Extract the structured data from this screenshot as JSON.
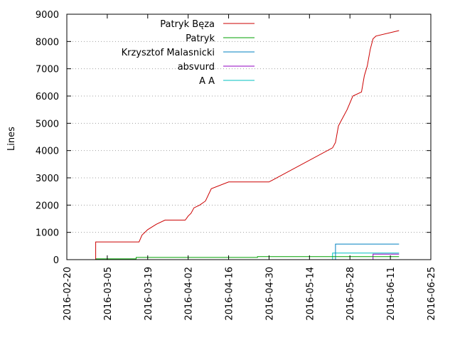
{
  "chart_data": {
    "type": "line",
    "title": "",
    "xlabel": "",
    "ylabel": "Lines",
    "x_axis": {
      "type": "date",
      "range": [
        "2016-02-20",
        "2016-06-25"
      ],
      "ticks": [
        "2016-02-20",
        "2016-03-05",
        "2016-03-19",
        "2016-04-02",
        "2016-04-16",
        "2016-04-30",
        "2016-05-14",
        "2016-05-28",
        "2016-06-11",
        "2016-06-25"
      ]
    },
    "y_axis": {
      "range": [
        0,
        9000
      ],
      "ticks": [
        0,
        1000,
        2000,
        3000,
        4000,
        5000,
        6000,
        7000,
        8000,
        9000
      ]
    },
    "grid": "dotted",
    "legend_position": "top-left",
    "series": [
      {
        "name": "Patryk Bęza",
        "color": "#cc0000",
        "points": [
          [
            "2016-03-01",
            0
          ],
          [
            "2016-03-01",
            650
          ],
          [
            "2016-03-16",
            650
          ],
          [
            "2016-03-17",
            900
          ],
          [
            "2016-03-19",
            1100
          ],
          [
            "2016-03-22",
            1300
          ],
          [
            "2016-03-25",
            1450
          ],
          [
            "2016-04-01",
            1450
          ],
          [
            "2016-04-02",
            1600
          ],
          [
            "2016-04-03",
            1700
          ],
          [
            "2016-04-04",
            1900
          ],
          [
            "2016-04-06",
            2000
          ],
          [
            "2016-04-08",
            2150
          ],
          [
            "2016-04-10",
            2600
          ],
          [
            "2016-04-16",
            2850
          ],
          [
            "2016-04-30",
            2850
          ],
          [
            "2016-05-22",
            4100
          ],
          [
            "2016-05-23",
            4300
          ],
          [
            "2016-05-24",
            4900
          ],
          [
            "2016-05-25",
            5100
          ],
          [
            "2016-05-27",
            5500
          ],
          [
            "2016-05-29",
            6000
          ],
          [
            "2016-06-01",
            6150
          ],
          [
            "2016-06-02",
            6750
          ],
          [
            "2016-06-03",
            7100
          ],
          [
            "2016-06-04",
            7700
          ],
          [
            "2016-06-05",
            8100
          ],
          [
            "2016-06-06",
            8200
          ],
          [
            "2016-06-14",
            8400
          ]
        ]
      },
      {
        "name": "Patryk",
        "color": "#00a000",
        "points": [
          [
            "2016-03-01",
            0
          ],
          [
            "2016-03-01",
            30
          ],
          [
            "2016-03-15",
            30
          ],
          [
            "2016-03-15",
            80
          ],
          [
            "2016-04-26",
            80
          ],
          [
            "2016-04-26",
            110
          ],
          [
            "2016-06-14",
            110
          ]
        ]
      },
      {
        "name": "Krzysztof Malasnicki",
        "color": "#0080c0",
        "points": [
          [
            "2016-05-23",
            0
          ],
          [
            "2016-05-23",
            570
          ],
          [
            "2016-06-14",
            570
          ]
        ]
      },
      {
        "name": "absvurd",
        "color": "#9000c0",
        "points": [
          [
            "2016-06-05",
            0
          ],
          [
            "2016-06-05",
            200
          ],
          [
            "2016-06-14",
            200
          ]
        ]
      },
      {
        "name": "A A",
        "color": "#00c0c0",
        "points": [
          [
            "2016-05-22",
            0
          ],
          [
            "2016-05-22",
            240
          ],
          [
            "2016-06-14",
            240
          ]
        ]
      }
    ]
  }
}
